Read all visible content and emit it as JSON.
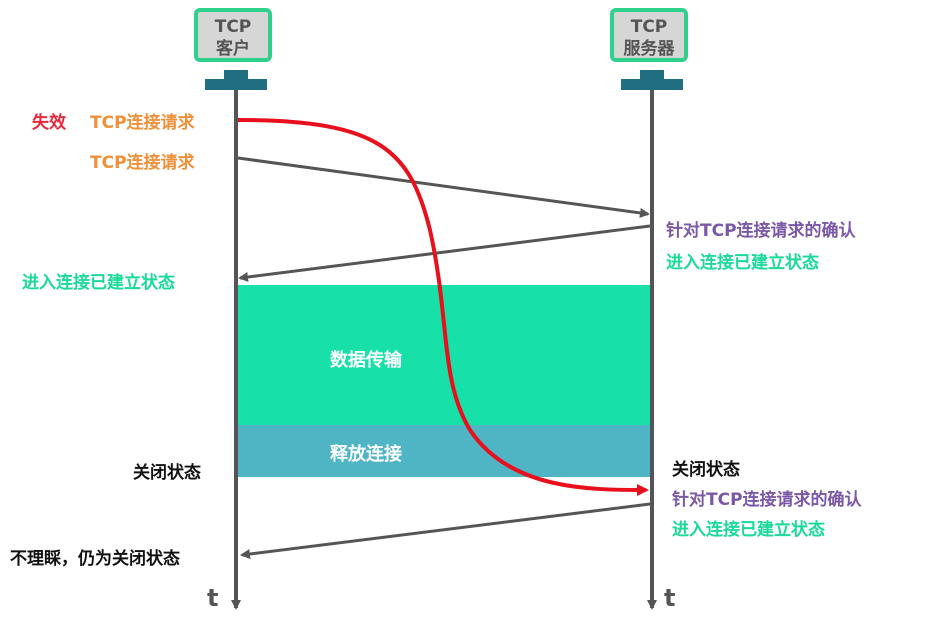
{
  "client": {
    "line1": "TCP",
    "line2": "客户"
  },
  "server": {
    "line1": "TCP",
    "line2": "服务器"
  },
  "labels": {
    "invalid": "失效",
    "stale_request": "TCP连接请求",
    "request": "TCP连接请求",
    "server_ack_1": "针对TCP连接请求的确认",
    "server_established_1": "进入连接已建立状态",
    "client_established": "进入连接已建立状态",
    "data_transfer": "数据传输",
    "release": "释放连接",
    "client_closed": "关闭状态",
    "server_closed": "关闭状态",
    "server_ack_2": "针对TCP连接请求的确认",
    "server_established_2": "进入连接已建立状态",
    "client_ignore": "不理睬，仍为关闭状态",
    "time_client": "t",
    "time_server": "t"
  },
  "colors": {
    "data_box": "#17e0a8",
    "release_box": "#4fb5c5",
    "stale_arrow": "#e8101c",
    "arrow": "#555555",
    "monitor_border": "#2ed18c",
    "stand": "#1f6f80"
  }
}
